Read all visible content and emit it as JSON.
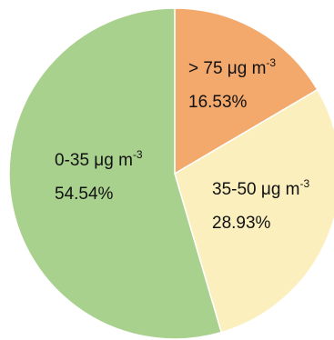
{
  "chart_data": {
    "type": "pie",
    "title": "",
    "slices": [
      {
        "label": "> 75 μg m",
        "sup": "-3",
        "percent": 16.53,
        "percent_label": "16.53%",
        "color": "#f3a96c"
      },
      {
        "label": "35-50 μg m",
        "sup": "-3",
        "percent": 28.93,
        "percent_label": "28.93%",
        "color": "#fbf0bd"
      },
      {
        "label": "0-35 μg m",
        "sup": "-3",
        "percent": 54.54,
        "percent_label": "54.54%",
        "color": "#a9d18e"
      }
    ],
    "start_angle_deg": 0,
    "direction": "clockwise",
    "legend": "none"
  }
}
